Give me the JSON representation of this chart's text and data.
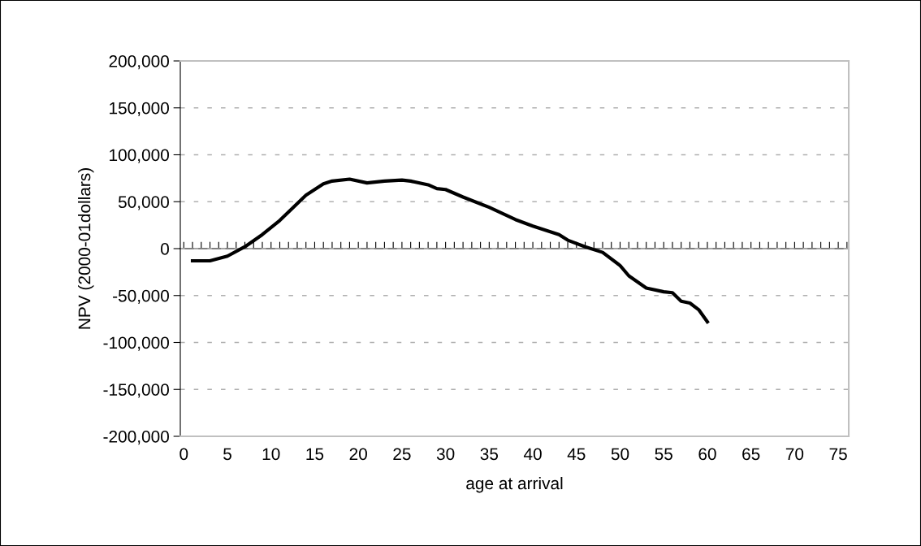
{
  "chart_data": {
    "type": "line",
    "xlabel": "age at arrival",
    "ylabel": "NPV (2000-01dollars)",
    "x": [
      1,
      3,
      5,
      7,
      9,
      11,
      14,
      16,
      17,
      19,
      21,
      23,
      25,
      26,
      28,
      29,
      30,
      32,
      35,
      38,
      40,
      43,
      44,
      46,
      48,
      50,
      51,
      53,
      55,
      56,
      57,
      58,
      59,
      60
    ],
    "series": [
      {
        "color": "#000000",
        "values": [
          -13000,
          -13000,
          -8000,
          2000,
          15000,
          30000,
          57000,
          69000,
          72000,
          74000,
          70000,
          72000,
          73000,
          72000,
          68000,
          64000,
          63000,
          55000,
          44000,
          31000,
          24000,
          15000,
          9000,
          2000,
          -4000,
          -18000,
          -29000,
          -42000,
          -46000,
          -47000,
          -56000,
          -58000,
          -65000,
          -78000
        ]
      }
    ],
    "xlim": [
      -0.4,
      76.2
    ],
    "xticks": [
      0,
      5,
      10,
      15,
      20,
      25,
      30,
      35,
      40,
      45,
      50,
      55,
      60,
      65,
      70,
      75
    ],
    "ylim": [
      -200000,
      200000
    ],
    "yticks": [
      {
        "value": -200000,
        "label": "-200,000"
      },
      {
        "value": -150000,
        "label": "-150,000"
      },
      {
        "value": -100000,
        "label": "-100,000"
      },
      {
        "value": -50000,
        "label": "-50,000"
      },
      0,
      {
        "value": 50000,
        "label": "50,000"
      },
      {
        "value": 100000,
        "label": "100,000"
      },
      {
        "value": 150000,
        "label": "150,000"
      },
      {
        "value": 200000,
        "label": "200,000"
      }
    ],
    "grid": "y",
    "marker": "none",
    "line_style": "solid",
    "legend": false
  }
}
